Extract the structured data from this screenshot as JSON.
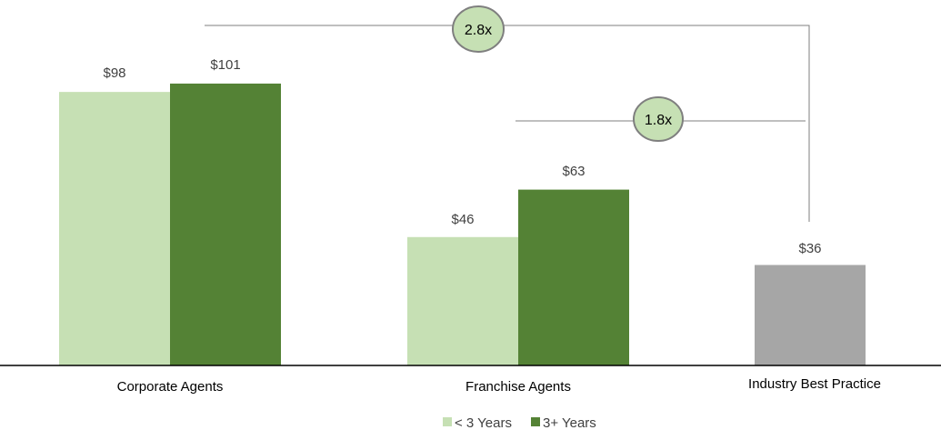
{
  "chart_data": {
    "type": "bar",
    "categories": [
      "Corporate Agents",
      "Franchise Agents",
      "Industry Best Practice"
    ],
    "series": [
      {
        "name": "< 3 Years",
        "values": [
          98,
          46,
          null
        ],
        "color": "#c6e0b4"
      },
      {
        "name": "3+ Years",
        "values": [
          101,
          63,
          null
        ],
        "color": "#548235"
      },
      {
        "name": "",
        "values": [
          null,
          null,
          36
        ],
        "color": "#a6a6a6"
      }
    ],
    "value_labels": {
      "corporate_lt3": "$98",
      "corporate_3plus": "$101",
      "franchise_lt3": "$46",
      "franchise_3plus": "$63",
      "industry": "$36"
    },
    "ylim": [
      0,
      110
    ],
    "grid": false,
    "legend": {
      "placement": "bottom-center",
      "items": [
        "< 3 Years",
        "3+ Years"
      ]
    },
    "annotations": [
      {
        "label": "2.8x",
        "from": "Corporate Agents",
        "to": "Industry Best Practice"
      },
      {
        "label": "1.8x",
        "from": "Franchise Agents",
        "to": "Industry Best Practice"
      }
    ],
    "colors": {
      "bubble_fill": "#c6e0b4",
      "bubble_stroke": "#7f7f7f",
      "connector": "#7f7f7f",
      "axis": "#000000"
    }
  }
}
